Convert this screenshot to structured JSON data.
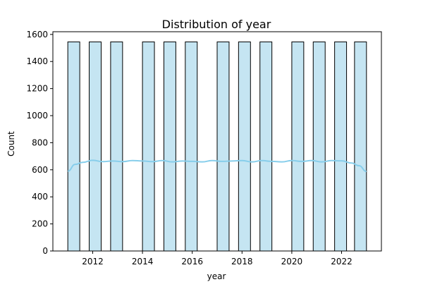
{
  "chart_data": {
    "type": "bar",
    "title": "Distribution of year",
    "xlabel": "year",
    "ylabel": "Count",
    "xlim": [
      2010.4,
      2023.6
    ],
    "ylim": [
      0,
      1620
    ],
    "x_ticks": [
      2012,
      2014,
      2016,
      2018,
      2020,
      2022
    ],
    "y_ticks": [
      0,
      200,
      400,
      600,
      800,
      1000,
      1200,
      1400,
      1600
    ],
    "bin_width": 0.48,
    "bins": [
      {
        "start": 2011.0,
        "count": 1545
      },
      {
        "start": 2011.86,
        "count": 1545
      },
      {
        "start": 2012.72,
        "count": 1545
      },
      {
        "start": 2014.0,
        "count": 1545
      },
      {
        "start": 2014.86,
        "count": 1545
      },
      {
        "start": 2015.72,
        "count": 1545
      },
      {
        "start": 2017.0,
        "count": 1545
      },
      {
        "start": 2017.86,
        "count": 1545
      },
      {
        "start": 2018.72,
        "count": 1545
      },
      {
        "start": 2020.0,
        "count": 1545
      },
      {
        "start": 2020.86,
        "count": 1545
      },
      {
        "start": 2021.72,
        "count": 1545
      },
      {
        "start": 2022.52,
        "count": 1545
      }
    ],
    "kde": {
      "x": [
        2011.0,
        2011.3,
        2011.6,
        2012.0,
        2012.4,
        2012.8,
        2013.2,
        2013.6,
        2014.0,
        2014.4,
        2014.8,
        2015.2,
        2015.6,
        2016.0,
        2016.4,
        2016.8,
        2017.2,
        2017.6,
        2018.0,
        2018.4,
        2018.8,
        2019.2,
        2019.6,
        2020.0,
        2020.4,
        2020.8,
        2021.2,
        2021.6,
        2022.0,
        2022.4,
        2022.7,
        2023.0
      ],
      "y": [
        590,
        640,
        655,
        670,
        660,
        665,
        660,
        668,
        665,
        660,
        668,
        658,
        665,
        662,
        658,
        668,
        662,
        665,
        668,
        658,
        668,
        662,
        658,
        668,
        662,
        668,
        658,
        668,
        666,
        650,
        630,
        588
      ]
    },
    "colors": {
      "bar_fill": "#c5e5f2",
      "bar_edge": "#000000",
      "kde_line": "#87ceeb",
      "axis": "#000000"
    },
    "grid": false,
    "legend": "none"
  }
}
